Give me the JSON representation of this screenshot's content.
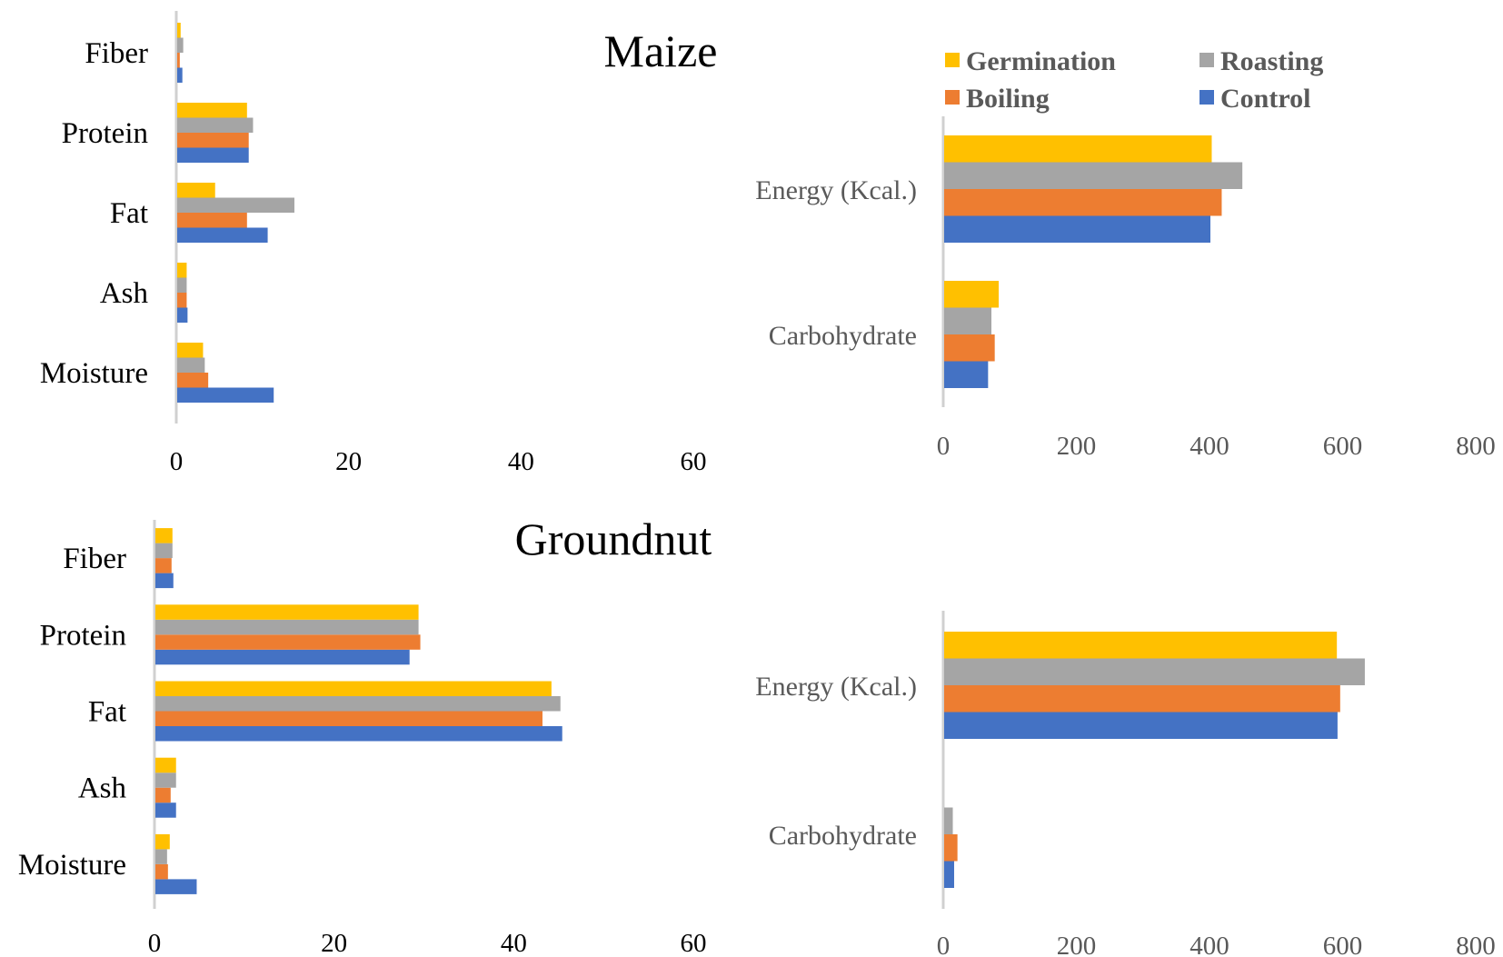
{
  "chart_data": [
    {
      "type": "bar",
      "orientation": "horizontal",
      "title": "Maize",
      "categories": [
        "Moisture",
        "Ash",
        "Fat",
        "Protein",
        "Fiber"
      ],
      "series": [
        {
          "name": "Control",
          "color": "#4472C4",
          "values": [
            11.2,
            1.2,
            10.5,
            8.3,
            0.6
          ]
        },
        {
          "name": "Boiling",
          "color": "#ED7D31",
          "values": [
            3.6,
            1.1,
            8.1,
            8.3,
            0.3
          ]
        },
        {
          "name": "Roasting",
          "color": "#A5A5A5",
          "values": [
            3.2,
            1.1,
            13.6,
            8.8,
            0.7
          ]
        },
        {
          "name": "Germination",
          "color": "#FFC000",
          "values": [
            3.0,
            1.1,
            4.4,
            8.1,
            0.4
          ]
        }
      ],
      "xlim": [
        0,
        60
      ],
      "xticks": [
        "0",
        "20",
        "40",
        "60"
      ]
    },
    {
      "type": "bar",
      "orientation": "horizontal",
      "title": "",
      "categories": [
        "Carbohydrate",
        "Energy (Kcal.)"
      ],
      "series": [
        {
          "name": "Control",
          "color": "#4472C4",
          "values": [
            66,
            400
          ]
        },
        {
          "name": "Boiling",
          "color": "#ED7D31",
          "values": [
            76,
            417
          ]
        },
        {
          "name": "Roasting",
          "color": "#A5A5A5",
          "values": [
            71,
            448
          ]
        },
        {
          "name": "Germination",
          "color": "#FFC000",
          "values": [
            82,
            402
          ]
        }
      ],
      "xlim": [
        0,
        800
      ],
      "xticks": [
        "0",
        "200",
        "400",
        "600",
        "800"
      ]
    },
    {
      "type": "bar",
      "orientation": "horizontal",
      "title": "Groundnut",
      "categories": [
        "Moisture",
        "Ash",
        "Fat",
        "Protein",
        "Fiber"
      ],
      "series": [
        {
          "name": "Control",
          "color": "#4472C4",
          "values": [
            4.6,
            2.3,
            45.3,
            28.3,
            2.0
          ]
        },
        {
          "name": "Boiling",
          "color": "#ED7D31",
          "values": [
            1.4,
            1.7,
            43.1,
            29.5,
            1.8
          ]
        },
        {
          "name": "Roasting",
          "color": "#A5A5A5",
          "values": [
            1.3,
            2.3,
            45.1,
            29.3,
            1.9
          ]
        },
        {
          "name": "Germination",
          "color": "#FFC000",
          "values": [
            1.6,
            2.3,
            44.1,
            29.3,
            1.9
          ]
        }
      ],
      "xlim": [
        0,
        60
      ],
      "xticks": [
        "0",
        "20",
        "40",
        "60"
      ]
    },
    {
      "type": "bar",
      "orientation": "horizontal",
      "title": "",
      "categories": [
        "Carbohydrate",
        "Energy (Kcal.)"
      ],
      "series": [
        {
          "name": "Control",
          "color": "#4472C4",
          "values": [
            15,
            591
          ]
        },
        {
          "name": "Boiling",
          "color": "#ED7D31",
          "values": [
            20,
            595
          ]
        },
        {
          "name": "Roasting",
          "color": "#A5A5A5",
          "values": [
            13,
            632
          ]
        },
        {
          "name": "Germination",
          "color": "#FFC000",
          "values": [
            0,
            590
          ]
        }
      ],
      "xlim": [
        0,
        800
      ],
      "xticks": [
        "0",
        "200",
        "400",
        "600",
        "800"
      ]
    }
  ],
  "legend": {
    "items": [
      {
        "name": "Germination",
        "color": "#FFC000"
      },
      {
        "name": "Roasting",
        "color": "#A5A5A5"
      },
      {
        "name": "Boiling",
        "color": "#ED7D31"
      },
      {
        "name": "Control",
        "color": "#4472C4"
      }
    ]
  }
}
